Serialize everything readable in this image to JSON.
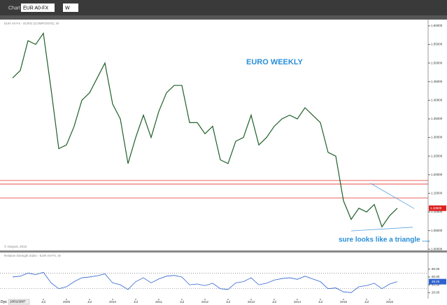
{
  "toolbar": {
    "symbol": "EUR A0-FX",
    "interval": "W",
    "window": "Chart"
  },
  "chart_data": {
    "type": "line",
    "header": "EUR A0-FX - EURO (COMPOSITE), W",
    "copyright": "© eSignal, 2016",
    "annotations": [
      "EURO WEEKLY",
      "sure looks like a triangle ...."
    ],
    "last_price_label": "1.10600",
    "start_date": "10/01/2007",
    "period_label": "Dys",
    "categories": [
      null,
      null,
      null,
      null,
      "Jul",
      null,
      null,
      "2009",
      null,
      null,
      "Jul",
      null,
      null,
      "2010",
      null,
      null,
      "Jul",
      null,
      null,
      "2011",
      null,
      null,
      "Jul",
      null,
      null,
      "2012",
      null,
      null,
      "Jul",
      null,
      null,
      "2013",
      null,
      null,
      "Jul",
      null,
      null,
      "2014",
      null,
      null,
      "Jul",
      null,
      null,
      "2015",
      null,
      null,
      "Jul",
      null,
      null,
      "2016",
      null
    ],
    "series": [
      {
        "color": "#1f5f2a",
        "values": [
          1.46,
          1.48,
          1.56,
          1.55,
          1.58,
          1.43,
          1.27,
          1.28,
          1.33,
          1.4,
          1.42,
          1.46,
          1.5,
          1.39,
          1.35,
          1.23,
          1.3,
          1.36,
          1.3,
          1.37,
          1.42,
          1.44,
          1.44,
          1.34,
          1.34,
          1.31,
          1.33,
          1.24,
          1.23,
          1.29,
          1.3,
          1.36,
          1.28,
          1.3,
          1.33,
          1.35,
          1.36,
          1.35,
          1.38,
          1.36,
          1.34,
          1.26,
          1.25,
          1.13,
          1.08,
          1.11,
          1.1,
          1.12,
          1.06,
          1.09,
          1.11
        ]
      }
    ],
    "ylim": [
      0.9985,
      1.613
    ],
    "yticks": [
      {
        "value": 1.6,
        "label": "1.60000"
      },
      {
        "value": 1.55,
        "label": "1.55000"
      },
      {
        "value": 1.5,
        "label": "1.50000"
      },
      {
        "value": 1.45,
        "label": "1.45000"
      },
      {
        "value": 1.4,
        "label": "1.40000"
      },
      {
        "value": 1.35,
        "label": "1.35000"
      },
      {
        "value": 1.3,
        "label": "1.30000"
      },
      {
        "value": 1.25,
        "label": "1.25000"
      },
      {
        "value": 1.2,
        "label": "1.20000"
      },
      {
        "value": 1.15,
        "label": "1.15000"
      },
      {
        "value": 1.1,
        "label": "1.10000"
      },
      {
        "value": 1.05,
        "label": "1.05000"
      },
      {
        "value": 1.0,
        "label": "1.00000"
      }
    ],
    "levels": {
      "color": "#e03030",
      "values": [
        1.1846,
        1.175,
        1.1376
      ]
    },
    "trendlines": {
      "color": "#5aa0e0",
      "lines": [
        {
          "start": [
            46.5,
            1.177
          ],
          "end": [
            52.2,
            1.109
          ]
        },
        {
          "start": [
            44,
            1.049
          ],
          "end": [
            52,
            1.059
          ]
        }
      ]
    },
    "rsi": {
      "title": "Relative Strength Index - EUR A0-FX, W",
      "color": "#2f62d0",
      "last_label": "49.25",
      "values": [
        60,
        62,
        70,
        66,
        72,
        45,
        30,
        35,
        48,
        58,
        60,
        63,
        68,
        45,
        40,
        28,
        48,
        58,
        45,
        55,
        62,
        64,
        60,
        40,
        42,
        38,
        44,
        30,
        28,
        45,
        48,
        58,
        40,
        44,
        52,
        56,
        58,
        54,
        62,
        55,
        48,
        30,
        32,
        22,
        20,
        35,
        38,
        44,
        30,
        42,
        48
      ],
      "ylim": [
        8,
        110
      ],
      "yticks": [
        {
          "value": 80,
          "label": "80.00"
        },
        {
          "value": 60,
          "label": "60.00"
        },
        {
          "value": 40,
          "label": "40.00"
        },
        {
          "value": 20,
          "label": "20.00"
        }
      ],
      "bands": [
        70,
        30
      ]
    }
  }
}
